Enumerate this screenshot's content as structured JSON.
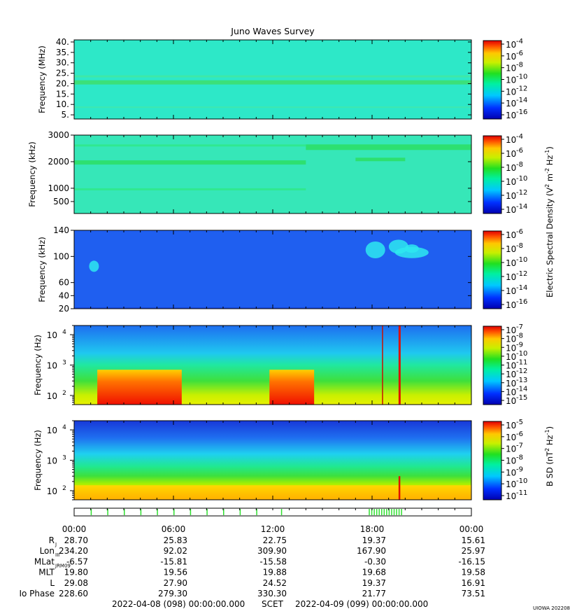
{
  "chart_data": {
    "type": "heatmap",
    "title": "Juno Waves Survey",
    "panels": [
      {
        "ylabel": "Frequency (MHz)",
        "yscale": "linear",
        "ylim": [
          3,
          41
        ],
        "yticks": [
          5,
          10,
          15,
          20,
          25,
          30,
          35,
          40
        ],
        "ytick_labels": [
          "5.",
          "10.",
          "15.",
          "20.",
          "25.",
          "30.",
          "35.",
          "40."
        ],
        "colorbar": {
          "ticks": [
            "10",
            "10",
            "10",
            "10",
            "10",
            "10",
            "10"
          ],
          "exponents": [
            "-4",
            "-6",
            "-8",
            "-10",
            "-12",
            "-14",
            "-16"
          ]
        },
        "base_color": "#2de8c8"
      },
      {
        "ylabel": "Frequency (kHz)",
        "yscale": "linear",
        "ylim": [
          50,
          3000
        ],
        "yticks": [
          500,
          1000,
          2000,
          3000
        ],
        "ytick_labels": [
          "500",
          "1000",
          "2000",
          "3000"
        ],
        "colorbar": {
          "ticks": [
            "10",
            "10",
            "10",
            "10",
            "10",
            "10"
          ],
          "exponents": [
            "-4",
            "-6",
            "-8",
            "-10",
            "-12",
            "-14"
          ]
        },
        "base_color": "#36e7b8"
      },
      {
        "ylabel": "Frequency (kHz)",
        "yscale": "linear",
        "ylim": [
          20,
          140
        ],
        "yticks": [
          20,
          40,
          60,
          100,
          140
        ],
        "ytick_labels": [
          "20",
          "40",
          "60",
          "100",
          "140"
        ],
        "colorbar": {
          "ticks": [
            "10",
            "10",
            "10",
            "10",
            "10",
            "10"
          ],
          "exponents": [
            "-6",
            "-8",
            "-10",
            "-12",
            "-14",
            "-16"
          ]
        },
        "base_color": "#1f5ff0"
      },
      {
        "ylabel": "Frequency (Hz)",
        "yscale": "log",
        "ylim": [
          50,
          20000
        ],
        "yticks_labeled": [
          {
            "base": "10",
            "exp": "2",
            "value": 100
          },
          {
            "base": "10",
            "exp": "3",
            "value": 1000
          },
          {
            "base": "10",
            "exp": "4",
            "value": 10000
          }
        ],
        "colorbar": {
          "ticks": [
            "10",
            "10",
            "10",
            "10",
            "10",
            "10",
            "10",
            "10",
            "10"
          ],
          "exponents": [
            "-7",
            "-8",
            "-9",
            "-10",
            "-11",
            "-12",
            "-13",
            "-14",
            "-15"
          ]
        },
        "base_color": "#1f7ff0"
      },
      {
        "ylabel": "Frequency (Hz)",
        "yscale": "log",
        "ylim": [
          50,
          20000
        ],
        "yticks_labeled": [
          {
            "base": "10",
            "exp": "2",
            "value": 100
          },
          {
            "base": "10",
            "exp": "3",
            "value": 1000
          },
          {
            "base": "10",
            "exp": "4",
            "value": 10000
          }
        ],
        "colorbar": {
          "ticks": [
            "10",
            "10",
            "10",
            "10",
            "10",
            "10",
            "10"
          ],
          "exponents": [
            "-5",
            "-6",
            "-7",
            "-8",
            "-9",
            "-10",
            "-11"
          ]
        },
        "base_color": "#1d46e6"
      }
    ],
    "colorbar_label_electric": "Electric Spectral Density (V",
    "colorbar_label_magnetic": "B SD (nT",
    "x_ticks": [
      "00:00",
      "06:00",
      "12:00",
      "18:00",
      "00:00"
    ],
    "ephemeris": [
      {
        "name": "R",
        "sub": "J",
        "values": [
          "28.70",
          "25.83",
          "22.75",
          "19.37",
          "15.61"
        ]
      },
      {
        "name": "Lon",
        "sub": "III",
        "values": [
          "234.20",
          "92.02",
          "309.90",
          "167.90",
          "25.97"
        ]
      },
      {
        "name": "MLat",
        "sub": "JRM09",
        "values": [
          "-6.57",
          "-15.81",
          "-15.58",
          "-0.30",
          "-16.15"
        ]
      },
      {
        "name": "MLT",
        "sub": "",
        "values": [
          "19.80",
          "19.56",
          "19.88",
          "19.68",
          "19.58"
        ]
      },
      {
        "name": "L",
        "sub": "",
        "values": [
          "29.08",
          "27.90",
          "24.52",
          "19.37",
          "16.91"
        ]
      },
      {
        "name": "Io Phase",
        "sub": "",
        "values": [
          "228.60",
          "279.30",
          "330.30",
          "21.77",
          "73.51"
        ]
      }
    ],
    "footer": {
      "start": "2022-04-08 (098) 00:00:00.000",
      "center": "SCET",
      "end": "2022-04-09 (099) 00:00:00.000"
    },
    "stamp": "UIOWA 20220828"
  }
}
